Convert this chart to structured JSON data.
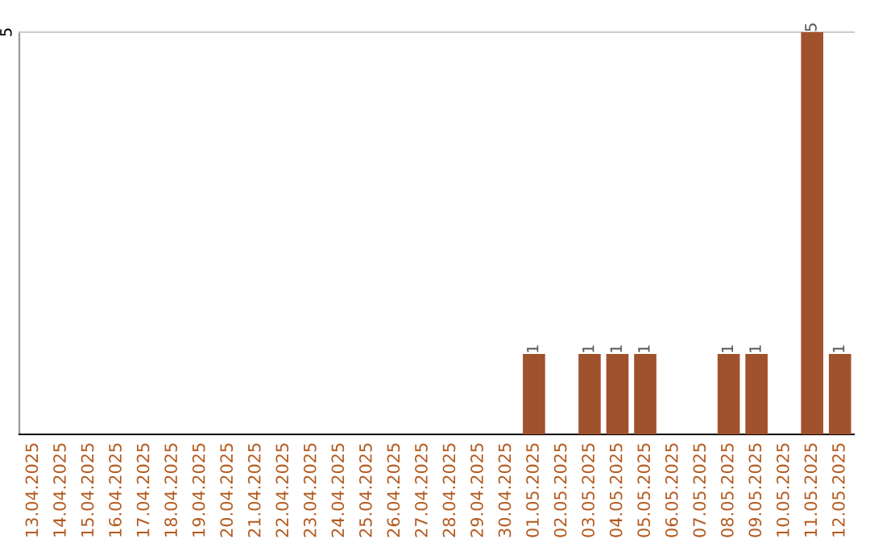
{
  "chart_data": {
    "type": "bar",
    "categories": [
      "13.04.2025",
      "14.04.2025",
      "15.04.2025",
      "16.04.2025",
      "17.04.2025",
      "18.04.2025",
      "19.04.2025",
      "20.04.2025",
      "21.04.2025",
      "22.04.2025",
      "23.04.2025",
      "24.04.2025",
      "25.04.2025",
      "26.04.2025",
      "27.04.2025",
      "28.04.2025",
      "29.04.2025",
      "30.04.2025",
      "01.05.2025",
      "02.05.2025",
      "03.05.2025",
      "04.05.2025",
      "05.05.2025",
      "06.05.2025",
      "07.05.2025",
      "08.05.2025",
      "09.05.2025",
      "10.05.2025",
      "11.05.2025",
      "12.05.2025"
    ],
    "values": [
      null,
      null,
      null,
      null,
      null,
      null,
      null,
      null,
      null,
      null,
      null,
      null,
      null,
      null,
      null,
      null,
      null,
      null,
      1,
      null,
      1,
      1,
      1,
      null,
      null,
      1,
      1,
      null,
      5,
      1
    ],
    "data_labels": true,
    "color": "#a0522d",
    "ylim": [
      0,
      5
    ],
    "annotations": [
      "5"
    ],
    "tick_labels": "x",
    "legend": false
  }
}
